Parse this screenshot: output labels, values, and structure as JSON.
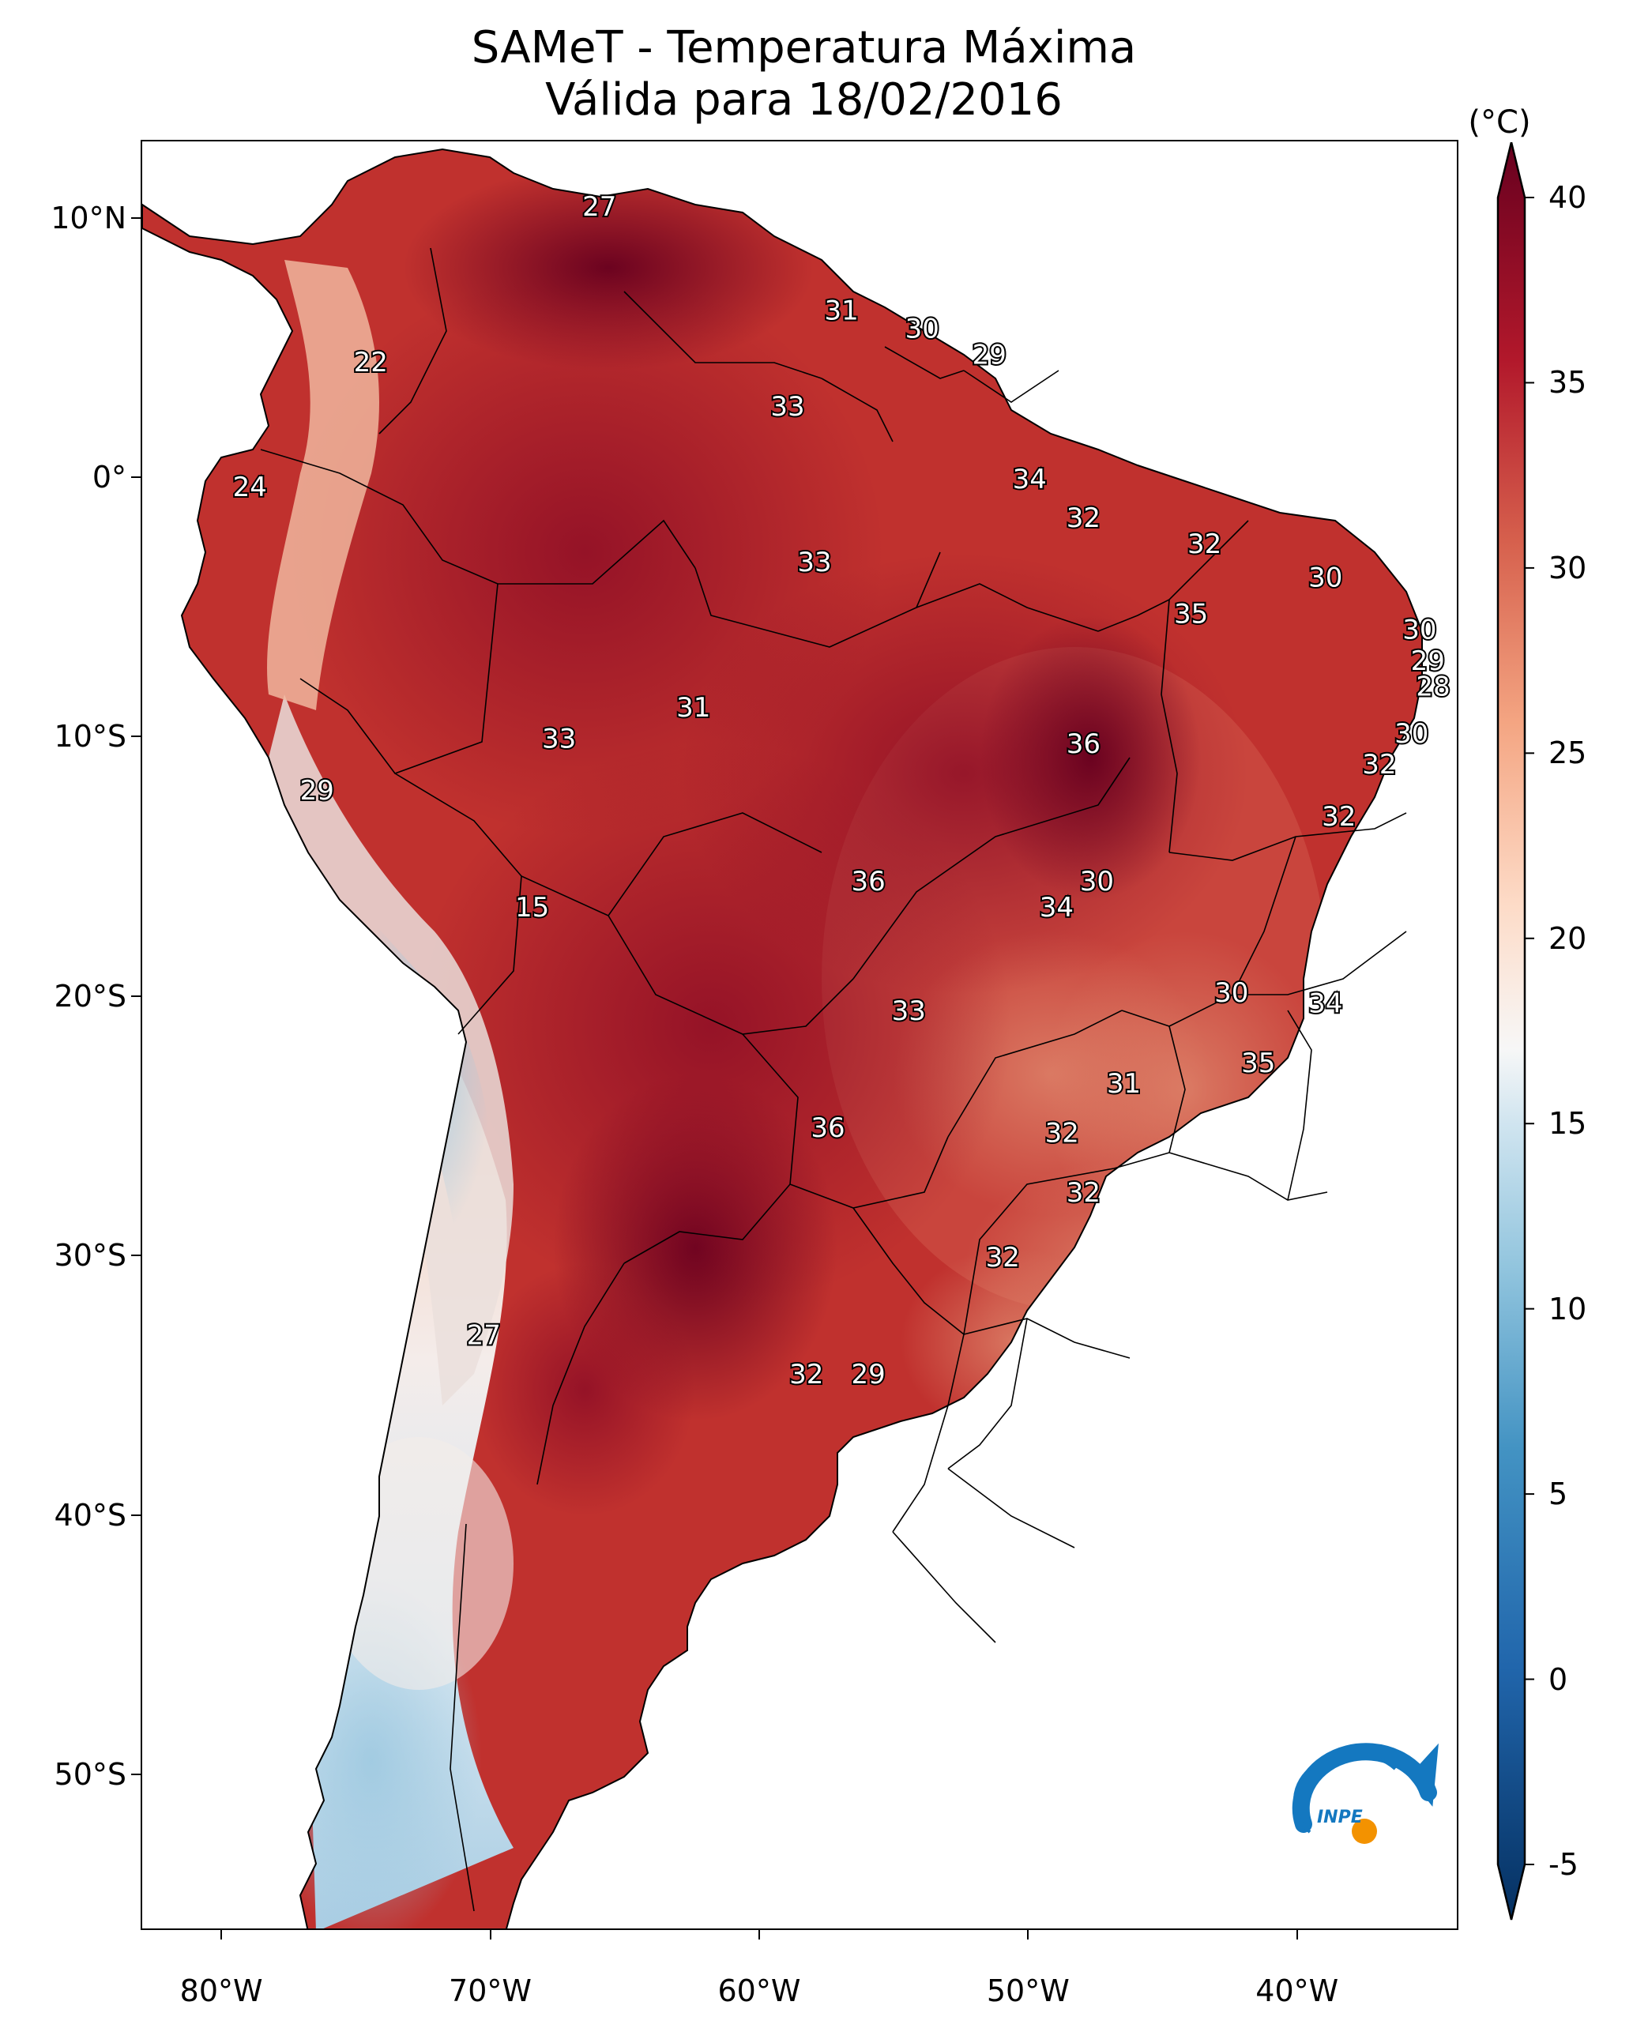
{
  "title": {
    "line1": "SAMeT - Temperatura Máxima",
    "line2": "Válida para 18/02/2016"
  },
  "map": {
    "extent": {
      "lon_min": -83,
      "lon_max": -34,
      "lat_min": -56,
      "lat_max": 13
    },
    "lat_ticks": [
      {
        "value": 10,
        "label": "10°N"
      },
      {
        "value": 0,
        "label": "0°"
      },
      {
        "value": -10,
        "label": "10°S"
      },
      {
        "value": -20,
        "label": "20°S"
      },
      {
        "value": -30,
        "label": "30°S"
      },
      {
        "value": -40,
        "label": "40°S"
      },
      {
        "value": -50,
        "label": "50°S"
      }
    ],
    "lon_ticks": [
      {
        "value": -80,
        "label": "80°W"
      },
      {
        "value": -70,
        "label": "70°W"
      },
      {
        "value": -60,
        "label": "60°W"
      },
      {
        "value": -50,
        "label": "50°W"
      },
      {
        "value": -40,
        "label": "40°W"
      }
    ],
    "temperature_labels": [
      {
        "lon": -66.0,
        "lat": 10.5,
        "text": "27"
      },
      {
        "lon": -57.0,
        "lat": 6.5,
        "text": "31"
      },
      {
        "lon": -54.0,
        "lat": 5.8,
        "text": "30"
      },
      {
        "lon": -51.5,
        "lat": 4.8,
        "text": "29"
      },
      {
        "lon": -74.5,
        "lat": 4.5,
        "text": "22"
      },
      {
        "lon": -59.0,
        "lat": 2.8,
        "text": "33"
      },
      {
        "lon": -50.0,
        "lat": 0.0,
        "text": "34"
      },
      {
        "lon": -79.0,
        "lat": -0.3,
        "text": "24"
      },
      {
        "lon": -48.0,
        "lat": -1.5,
        "text": "32"
      },
      {
        "lon": -43.5,
        "lat": -2.5,
        "text": "32"
      },
      {
        "lon": -58.0,
        "lat": -3.2,
        "text": "33"
      },
      {
        "lon": -39.0,
        "lat": -3.8,
        "text": "30"
      },
      {
        "lon": -44.0,
        "lat": -5.2,
        "text": "35"
      },
      {
        "lon": -35.5,
        "lat": -5.8,
        "text": "30"
      },
      {
        "lon": -35.2,
        "lat": -7.0,
        "text": "29"
      },
      {
        "lon": -35.0,
        "lat": -8.0,
        "text": "28"
      },
      {
        "lon": -62.5,
        "lat": -8.8,
        "text": "31"
      },
      {
        "lon": -35.8,
        "lat": -9.8,
        "text": "30"
      },
      {
        "lon": -48.0,
        "lat": -10.2,
        "text": "36"
      },
      {
        "lon": -67.5,
        "lat": -10.0,
        "text": "33"
      },
      {
        "lon": -37.0,
        "lat": -11.0,
        "text": "32"
      },
      {
        "lon": -38.5,
        "lat": -13.0,
        "text": "32"
      },
      {
        "lon": -76.5,
        "lat": -12.0,
        "text": "29"
      },
      {
        "lon": -56.0,
        "lat": -15.5,
        "text": "36"
      },
      {
        "lon": -47.5,
        "lat": -15.5,
        "text": "30"
      },
      {
        "lon": -49.0,
        "lat": -16.5,
        "text": "34"
      },
      {
        "lon": -68.5,
        "lat": -16.5,
        "text": "15"
      },
      {
        "lon": -42.5,
        "lat": -19.8,
        "text": "30"
      },
      {
        "lon": -39.0,
        "lat": -20.2,
        "text": "34"
      },
      {
        "lon": -54.5,
        "lat": -20.5,
        "text": "33"
      },
      {
        "lon": -41.5,
        "lat": -22.5,
        "text": "35"
      },
      {
        "lon": -46.5,
        "lat": -23.3,
        "text": "31"
      },
      {
        "lon": -57.5,
        "lat": -25.0,
        "text": "36"
      },
      {
        "lon": -48.8,
        "lat": -25.2,
        "text": "32"
      },
      {
        "lon": -48.0,
        "lat": -27.5,
        "text": "32"
      },
      {
        "lon": -51.0,
        "lat": -30.0,
        "text": "32"
      },
      {
        "lon": -70.3,
        "lat": -33.0,
        "text": "27"
      },
      {
        "lon": -58.3,
        "lat": -34.5,
        "text": "32"
      },
      {
        "lon": -56.0,
        "lat": -34.5,
        "text": "29"
      }
    ]
  },
  "colorbar": {
    "unit": "(°C)",
    "min": -7,
    "max": 42,
    "ticks": [
      {
        "value": 40,
        "label": "40"
      },
      {
        "value": 35,
        "label": "35"
      },
      {
        "value": 30,
        "label": "30"
      },
      {
        "value": 25,
        "label": "25"
      },
      {
        "value": 20,
        "label": "20"
      },
      {
        "value": 15,
        "label": "15"
      },
      {
        "value": 10,
        "label": "10"
      },
      {
        "value": 5,
        "label": "5"
      },
      {
        "value": 0,
        "label": "0"
      },
      {
        "value": -5,
        "label": "-5"
      }
    ],
    "color_stops": [
      {
        "value": -7,
        "color": "#053061"
      },
      {
        "value": 0,
        "color": "#2166ac"
      },
      {
        "value": 6,
        "color": "#4393c3"
      },
      {
        "value": 11,
        "color": "#92c5de"
      },
      {
        "value": 15,
        "color": "#d1e5f0"
      },
      {
        "value": 17,
        "color": "#f7f7f7"
      },
      {
        "value": 21,
        "color": "#fddbc7"
      },
      {
        "value": 26,
        "color": "#f4a582"
      },
      {
        "value": 31,
        "color": "#d6604d"
      },
      {
        "value": 36,
        "color": "#b2182b"
      },
      {
        "value": 42,
        "color": "#67001f"
      }
    ]
  },
  "logo": {
    "text": "INPE",
    "colors": {
      "arc": "#1478c0",
      "dot": "#f39200"
    }
  }
}
